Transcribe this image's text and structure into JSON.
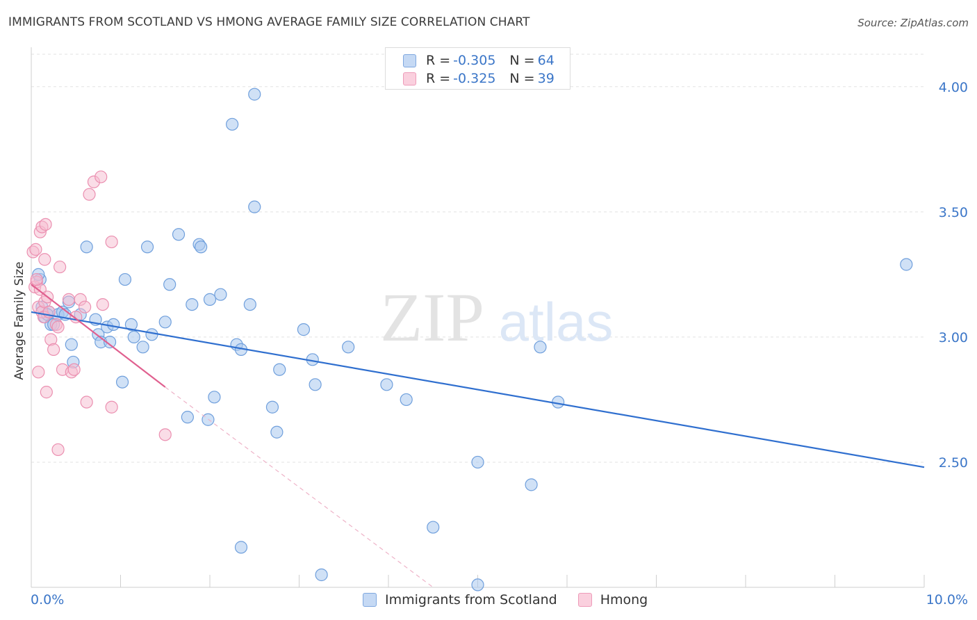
{
  "header": {
    "title": "IMMIGRANTS FROM SCOTLAND VS HMONG AVERAGE FAMILY SIZE CORRELATION CHART",
    "source": "Source: ZipAtlas.com"
  },
  "watermark": {
    "zip": "ZIP",
    "atlas": "atlas"
  },
  "colors": {
    "blue_fill": "#aac8ee",
    "blue_stroke": "#6f9fdc",
    "blue_line": "#2f6fcf",
    "pink_fill": "#f6bcd0",
    "pink_stroke": "#eb8fb0",
    "pink_line": "#e0608f",
    "tick_label": "#3b76c8",
    "grid": "#e2e2e2"
  },
  "legend_top": {
    "rows": [
      {
        "r_label": "R = ",
        "r_value": "-0.305",
        "n_label": "N = ",
        "n_value": "64"
      },
      {
        "r_label": "R = ",
        "r_value": "-0.325",
        "n_label": "N = ",
        "n_value": "39"
      }
    ]
  },
  "legend_bottom": [
    "Immigrants from Scotland",
    "Hmong"
  ],
  "chart_data": {
    "type": "scatter",
    "title": "IMMIGRANTS FROM SCOTLAND VS HMONG AVERAGE FAMILY SIZE CORRELATION CHART",
    "xlabel": "",
    "ylabel": "Average Family Size",
    "xlim": [
      0,
      10
    ],
    "ylim": [
      2.0,
      4.13
    ],
    "x_tick_labels": [
      "0.0%",
      "10.0%"
    ],
    "y_ticks": [
      2.5,
      3.0,
      3.5,
      4.0
    ],
    "y_tick_labels": [
      "2.50",
      "3.00",
      "3.50",
      "4.00"
    ],
    "grid": true,
    "series": [
      {
        "name": "Immigrants from Scotland",
        "r": -0.305,
        "n": 64,
        "trend": {
          "x": [
            0,
            10
          ],
          "y": [
            3.1,
            2.48
          ]
        },
        "points": [
          [
            0.1,
            3.23
          ],
          [
            0.12,
            3.12
          ],
          [
            0.15,
            3.08
          ],
          [
            0.2,
            3.1
          ],
          [
            0.22,
            3.05
          ],
          [
            0.25,
            3.05
          ],
          [
            0.3,
            3.09
          ],
          [
            0.35,
            3.1
          ],
          [
            0.38,
            3.09
          ],
          [
            0.42,
            3.14
          ],
          [
            0.45,
            2.97
          ],
          [
            0.47,
            2.9
          ],
          [
            0.55,
            3.09
          ],
          [
            0.62,
            3.36
          ],
          [
            0.72,
            3.07
          ],
          [
            0.75,
            3.01
          ],
          [
            0.78,
            2.98
          ],
          [
            0.85,
            3.04
          ],
          [
            0.88,
            2.98
          ],
          [
            0.92,
            3.05
          ],
          [
            1.02,
            2.82
          ],
          [
            1.05,
            3.23
          ],
          [
            1.12,
            3.05
          ],
          [
            1.15,
            3.0
          ],
          [
            1.25,
            2.96
          ],
          [
            1.3,
            3.36
          ],
          [
            1.35,
            3.01
          ],
          [
            1.5,
            3.06
          ],
          [
            1.55,
            3.21
          ],
          [
            1.65,
            3.41
          ],
          [
            1.75,
            2.68
          ],
          [
            1.8,
            3.13
          ],
          [
            1.88,
            3.37
          ],
          [
            1.9,
            3.36
          ],
          [
            1.98,
            2.67
          ],
          [
            2.0,
            3.15
          ],
          [
            2.05,
            2.76
          ],
          [
            2.12,
            3.17
          ],
          [
            2.25,
            3.85
          ],
          [
            2.3,
            2.97
          ],
          [
            2.35,
            2.95
          ],
          [
            2.35,
            2.16
          ],
          [
            2.45,
            3.13
          ],
          [
            2.5,
            3.52
          ],
          [
            2.5,
            3.97
          ],
          [
            2.7,
            2.72
          ],
          [
            2.75,
            2.62
          ],
          [
            2.78,
            2.87
          ],
          [
            3.05,
            3.03
          ],
          [
            3.15,
            2.91
          ],
          [
            3.18,
            2.81
          ],
          [
            3.25,
            2.05
          ],
          [
            3.55,
            2.96
          ],
          [
            3.98,
            2.81
          ],
          [
            4.2,
            2.75
          ],
          [
            4.5,
            2.24
          ],
          [
            5.0,
            2.5
          ],
          [
            5.0,
            2.01
          ],
          [
            5.6,
            2.41
          ],
          [
            5.7,
            2.96
          ],
          [
            5.9,
            2.74
          ],
          [
            9.8,
            3.29
          ],
          [
            0.08,
            3.25
          ],
          [
            0.18,
            3.09
          ]
        ]
      },
      {
        "name": "Hmong",
        "r": -0.325,
        "n": 39,
        "trend": {
          "x": [
            0,
            1.5
          ],
          "y": [
            3.21,
            2.8
          ]
        },
        "trend_dashed": {
          "x": [
            1.5,
            4.5
          ],
          "y": [
            2.8,
            2.0
          ]
        },
        "points": [
          [
            0.02,
            3.34
          ],
          [
            0.04,
            3.2
          ],
          [
            0.05,
            3.35
          ],
          [
            0.06,
            3.22
          ],
          [
            0.08,
            3.12
          ],
          [
            0.1,
            3.42
          ],
          [
            0.1,
            3.19
          ],
          [
            0.12,
            3.44
          ],
          [
            0.12,
            3.1
          ],
          [
            0.14,
            3.08
          ],
          [
            0.15,
            3.31
          ],
          [
            0.15,
            3.14
          ],
          [
            0.16,
            3.45
          ],
          [
            0.17,
            2.78
          ],
          [
            0.18,
            3.16
          ],
          [
            0.2,
            3.1
          ],
          [
            0.22,
            2.99
          ],
          [
            0.25,
            2.95
          ],
          [
            0.28,
            3.05
          ],
          [
            0.3,
            3.04
          ],
          [
            0.3,
            2.55
          ],
          [
            0.32,
            3.28
          ],
          [
            0.35,
            2.87
          ],
          [
            0.42,
            3.15
          ],
          [
            0.45,
            2.86
          ],
          [
            0.48,
            2.87
          ],
          [
            0.5,
            3.08
          ],
          [
            0.55,
            3.15
          ],
          [
            0.6,
            3.12
          ],
          [
            0.62,
            2.74
          ],
          [
            0.65,
            3.57
          ],
          [
            0.7,
            3.62
          ],
          [
            0.78,
            3.64
          ],
          [
            0.8,
            3.13
          ],
          [
            0.9,
            2.72
          ],
          [
            0.9,
            3.38
          ],
          [
            1.5,
            2.61
          ],
          [
            0.08,
            2.86
          ],
          [
            0.06,
            3.23
          ]
        ]
      }
    ]
  }
}
